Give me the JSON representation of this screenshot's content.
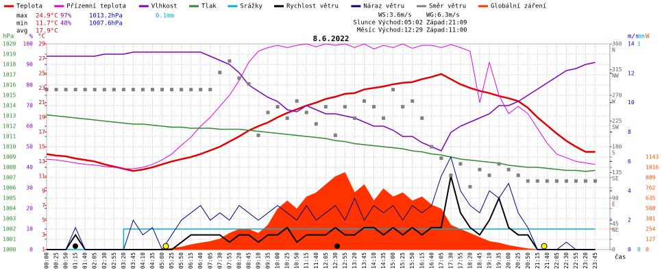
{
  "chart_data": {
    "type": "line",
    "title": "8.6.2022",
    "x_label": "čas",
    "x": [
      "00:00",
      "00:25",
      "00:50",
      "01:15",
      "01:40",
      "02:05",
      "02:30",
      "02:55",
      "03:20",
      "03:45",
      "04:10",
      "04:35",
      "05:00",
      "05:25",
      "05:50",
      "06:15",
      "06:40",
      "07:05",
      "07:30",
      "07:55",
      "08:20",
      "08:45",
      "09:10",
      "09:35",
      "10:00",
      "10:25",
      "10:50",
      "11:15",
      "11:40",
      "12:05",
      "12:30",
      "12:55",
      "13:20",
      "13:45",
      "14:10",
      "14:35",
      "15:00",
      "15:25",
      "15:50",
      "16:15",
      "16:40",
      "17:05",
      "17:30",
      "17:55",
      "18:20",
      "18:45",
      "19:10",
      "19:35",
      "20:00",
      "20:25",
      "20:50",
      "21:15",
      "21:40",
      "22:05",
      "22:30",
      "22:55",
      "23:20",
      "23:45"
    ],
    "grid": true,
    "axes": {
      "pres": {
        "label": "hPa",
        "side": "left",
        "color": "#2e8b2e",
        "lim": [
          1000,
          1020
        ],
        "ticks": [
          1000,
          1001,
          1002,
          1003,
          1004,
          1005,
          1006,
          1007,
          1008,
          1009,
          1010,
          1011,
          1012,
          1013,
          1014,
          1015,
          1016,
          1017,
          1018,
          1019,
          1020
        ]
      },
      "hum": {
        "label": "%",
        "side": "left",
        "color": "#8000c0",
        "lim": [
          0,
          100
        ],
        "ticks": [
          0,
          10,
          20,
          30,
          40,
          50,
          60,
          70,
          80,
          90,
          100
        ]
      },
      "temp": {
        "label": "°C",
        "side": "left",
        "color": "#e00000",
        "lim": [
          1,
          29
        ],
        "ticks": [
          1,
          3,
          5,
          7,
          9,
          11,
          13,
          15,
          17,
          19,
          21,
          23,
          25,
          27,
          29
        ]
      },
      "deg": {
        "label": null,
        "side": "right",
        "color": "#606060",
        "lim": [
          0,
          360
        ],
        "ticks": [
          0,
          45,
          90,
          135,
          180,
          225,
          270,
          315,
          360
        ],
        "compass": [
          null,
          "NE",
          "E",
          "SE",
          "S",
          "SW",
          "W",
          "NW",
          "N"
        ]
      },
      "ms": {
        "label": "m/s",
        "side": "right",
        "color": "#0000c0",
        "lim": [
          0,
          14
        ],
        "ticks": [
          0,
          2,
          4,
          6,
          8,
          10,
          12,
          14
        ]
      },
      "mm": {
        "label": "mm",
        "side": "right",
        "color": "#00a8c8",
        "lim": [
          0,
          1
        ],
        "ticks": [
          0,
          1
        ]
      },
      "rad": {
        "label": "W",
        "side": "right",
        "color": "#ff5000",
        "lim": [
          0,
          2540
        ],
        "ticks": [
          0,
          127,
          254,
          381,
          508,
          635,
          762,
          889,
          1016,
          1143
        ]
      }
    },
    "series": [
      {
        "name": "Teplota",
        "color": "#e00000",
        "axis": "temp",
        "kind": "line",
        "width": 2.5,
        "values": [
          14.0,
          13.8,
          13.7,
          13.4,
          13.2,
          13.0,
          12.6,
          12.3,
          12.0,
          11.7,
          11.9,
          12.2,
          12.6,
          13.0,
          13.3,
          13.6,
          14.0,
          14.5,
          15.0,
          15.7,
          16.4,
          17.2,
          17.8,
          18.3,
          19.0,
          19.6,
          20.1,
          20.6,
          21.0,
          21.5,
          21.8,
          22.2,
          22.3,
          22.8,
          23.0,
          23.2,
          23.5,
          23.7,
          23.8,
          24.2,
          24.5,
          24.9,
          24.2,
          23.5,
          23.0,
          22.6,
          22.3,
          21.9,
          21.6,
          21.2,
          20.3,
          19.0,
          17.9,
          16.8,
          15.8,
          15.0,
          14.3,
          14.3
        ]
      },
      {
        "name": "Přízemní teplota",
        "color": "#e000e0",
        "axis": "temp",
        "kind": "line",
        "width": 1,
        "values": [
          13.3,
          13.2,
          13.0,
          12.8,
          12.6,
          12.5,
          12.3,
          12.2,
          12.0,
          12.0,
          12.2,
          12.6,
          13.2,
          14.0,
          15.2,
          16.3,
          17.8,
          19.0,
          20.5,
          22.0,
          24.0,
          26.5,
          28.0,
          28.5,
          28.8,
          28.5,
          28.8,
          29.0,
          28.6,
          29.0,
          28.8,
          29.0,
          28.5,
          29.0,
          28.3,
          28.8,
          28.5,
          29.0,
          28.4,
          28.8,
          28.8,
          28.5,
          28.9,
          28.5,
          28.0,
          21.0,
          26.5,
          22.0,
          19.5,
          20.5,
          19.5,
          17.5,
          15.5,
          14.0,
          13.5,
          13.0,
          12.8,
          12.6
        ]
      },
      {
        "name": "Vlhkost",
        "color": "#8000c0",
        "axis": "hum",
        "kind": "line",
        "width": 1.5,
        "values": [
          94,
          94,
          94,
          94,
          94,
          94,
          95,
          95,
          95,
          96,
          96,
          96,
          96,
          96,
          96,
          96,
          96,
          94,
          92,
          90,
          86,
          80,
          77,
          74,
          72,
          68,
          67,
          70,
          68,
          66,
          66,
          65,
          64,
          62,
          60,
          60,
          58,
          55,
          55,
          52,
          50,
          48,
          57,
          60,
          62,
          64,
          66,
          70,
          70,
          72,
          75,
          78,
          81,
          84,
          87,
          88,
          90,
          91
        ]
      },
      {
        "name": "Tlak",
        "color": "#2e8b2e",
        "axis": "pres",
        "kind": "line",
        "width": 1.5,
        "values": [
          1013.1,
          1013.0,
          1012.9,
          1012.8,
          1012.7,
          1012.6,
          1012.5,
          1012.4,
          1012.3,
          1012.2,
          1012.2,
          1012.1,
          1012.0,
          1011.9,
          1011.9,
          1011.8,
          1011.8,
          1011.8,
          1011.7,
          1011.7,
          1011.7,
          1011.6,
          1011.5,
          1011.4,
          1011.3,
          1011.2,
          1011.1,
          1011.0,
          1010.9,
          1010.8,
          1010.6,
          1010.5,
          1010.3,
          1010.2,
          1010.1,
          1010.0,
          1009.9,
          1009.8,
          1009.6,
          1009.5,
          1009.3,
          1009.2,
          1009.0,
          1008.8,
          1008.7,
          1008.6,
          1008.5,
          1008.4,
          1008.2,
          1008.1,
          1008.0,
          1008.0,
          1007.9,
          1007.8,
          1007.7,
          1007.7,
          1007.6,
          1007.7
        ]
      },
      {
        "name": "Srážky",
        "color": "#00b0d0",
        "axis": "mm",
        "kind": "step",
        "width": 1.5,
        "values": [
          0,
          0,
          0,
          0,
          0,
          0,
          0,
          0,
          0.1,
          0.1,
          0.1,
          0.1,
          0.1,
          0.1,
          0.1,
          0.1,
          0.1,
          0.1,
          0.1,
          0.1,
          0.1,
          0.1,
          0.1,
          0.1,
          0.1,
          0.1,
          0.1,
          0.1,
          0.1,
          0.1,
          0.1,
          0.1,
          0.1,
          0.1,
          0.1,
          0.1,
          0.1,
          0.1,
          0.1,
          0.1,
          0.1,
          0.1,
          0.1,
          0.1,
          0.1,
          0.1,
          0.1,
          0.1,
          0.1,
          0.1,
          0.1,
          0.1,
          0.1,
          0.1,
          0.1,
          0.1,
          0.1,
          0.1
        ]
      },
      {
        "name": "Rychlost větru",
        "color": "#000000",
        "axis": "ms",
        "kind": "line",
        "width": 2,
        "values": [
          0,
          0,
          0,
          1,
          0,
          0,
          0,
          0,
          0,
          0,
          0,
          0,
          0,
          0,
          0.5,
          1,
          1,
          1,
          1,
          0.5,
          1,
          1,
          0.5,
          1,
          1,
          1.5,
          0.5,
          1,
          1,
          1,
          1.5,
          1,
          1,
          1.5,
          1.5,
          1,
          1.5,
          1,
          1.5,
          1,
          1.5,
          1.5,
          5,
          2.5,
          1.5,
          1,
          2,
          3.5,
          1.5,
          1,
          1,
          0,
          0,
          0,
          0,
          0,
          0,
          0
        ]
      },
      {
        "name": "Náraz větru",
        "color": "#000080",
        "axis": "ms",
        "kind": "line",
        "width": 1,
        "values": [
          0,
          0,
          0,
          1.5,
          0,
          0,
          0,
          0,
          0,
          2,
          1,
          1.5,
          0,
          1,
          2,
          2.5,
          3,
          2,
          2.5,
          2,
          3,
          2.5,
          2,
          2.5,
          3,
          2.5,
          2,
          3,
          2,
          2.5,
          3,
          2,
          3.5,
          2,
          3,
          2.5,
          3,
          2,
          3,
          2.5,
          3,
          5,
          6.3,
          4,
          3,
          2.5,
          4,
          3.5,
          4.5,
          2.5,
          1.5,
          0,
          0,
          0,
          0.5,
          0,
          0,
          0
        ]
      },
      {
        "name": "Směr větru",
        "color": "#808080",
        "axis": "deg",
        "kind": "scatter",
        "width": 5,
        "values": [
          280,
          280,
          280,
          280,
          280,
          280,
          280,
          280,
          280,
          280,
          280,
          280,
          280,
          280,
          280,
          280,
          280,
          280,
          310,
          330,
          300,
          290,
          200,
          240,
          250,
          230,
          260,
          240,
          220,
          250,
          200,
          250,
          230,
          260,
          250,
          230,
          280,
          250,
          260,
          230,
          180,
          160,
          130,
          150,
          110,
          140,
          130,
          150,
          140,
          130,
          120,
          120,
          120,
          120,
          120,
          120,
          120,
          120
        ]
      },
      {
        "name": "Globální záření",
        "color": "#ff3300",
        "axis": "rad",
        "kind": "area",
        "width": 1,
        "values": [
          0,
          0,
          0,
          0,
          0,
          0,
          0,
          0,
          0,
          0,
          0,
          0,
          5,
          15,
          30,
          60,
          80,
          100,
          130,
          200,
          250,
          250,
          200,
          300,
          500,
          600,
          500,
          650,
          700,
          800,
          900,
          950,
          700,
          800,
          600,
          750,
          650,
          700,
          600,
          650,
          550,
          500,
          300,
          250,
          200,
          150,
          100,
          80,
          50,
          30,
          10,
          0,
          0,
          0,
          0,
          0,
          0,
          0
        ]
      }
    ],
    "stats": [
      {
        "label": "max",
        "items": [
          "24.9°C",
          "97%",
          "1013.2hPa",
          "0.1mm"
        ]
      },
      {
        "label": "min",
        "items": [
          "11.7°C",
          "48%",
          "1007.6hPa"
        ]
      },
      {
        "label": "avg",
        "items": [
          "17.9°C"
        ]
      }
    ],
    "wind_summary": [
      "WS:3.6m/s",
      "WG:6.3m/s"
    ],
    "sun": {
      "label": "Slunce",
      "rise": "Východ:05:02",
      "set": "Západ:21:09"
    },
    "moon": {
      "label": "Měsíc",
      "rise": "Východ:12:29",
      "set": "Západ:11:00"
    }
  }
}
